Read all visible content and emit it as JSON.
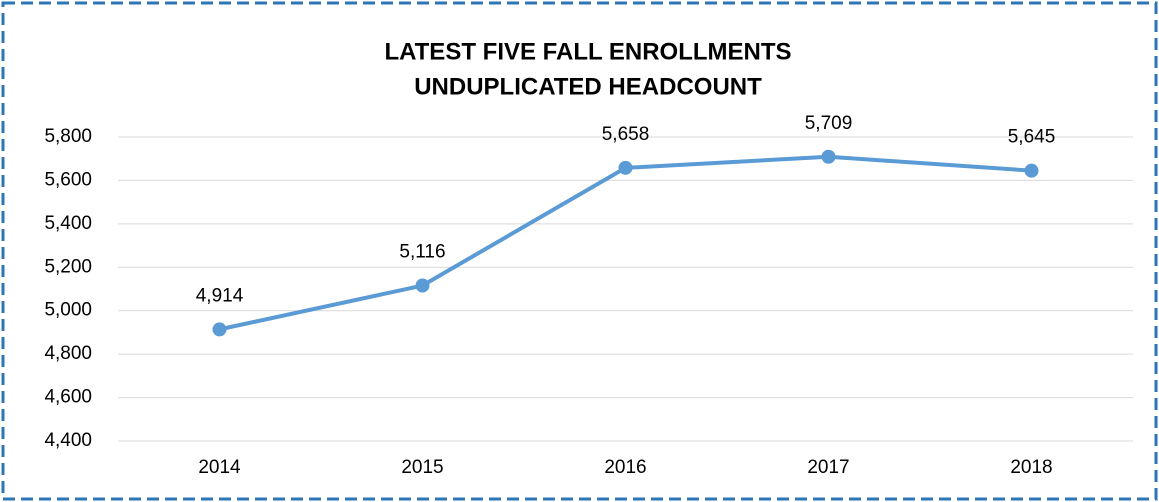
{
  "chart_data": {
    "type": "line",
    "title": "LATEST FIVE FALL ENROLLMENTS",
    "subtitle": "UNDUPLICATED HEADCOUNT",
    "categories": [
      "2014",
      "2015",
      "2016",
      "2017",
      "2018"
    ],
    "series": [
      {
        "name": "Unduplicated Headcount",
        "color": "#5b9bd5",
        "values": [
          4914,
          5116,
          5658,
          5709,
          5645
        ],
        "value_labels": [
          "4,914",
          "5,116",
          "5,658",
          "5,709",
          "5,645"
        ]
      }
    ],
    "ylim": [
      4400,
      5800
    ],
    "yticks": [
      {
        "value": 4400,
        "label": "4,400"
      },
      {
        "value": 4600,
        "label": "4,600"
      },
      {
        "value": 4800,
        "label": "4,800"
      },
      {
        "value": 5000,
        "label": "5,000"
      },
      {
        "value": 5200,
        "label": "5,200"
      },
      {
        "value": 5400,
        "label": "5,400"
      },
      {
        "value": 5600,
        "label": "5,600"
      },
      {
        "value": 5800,
        "label": "5,800"
      }
    ],
    "grid": true
  }
}
